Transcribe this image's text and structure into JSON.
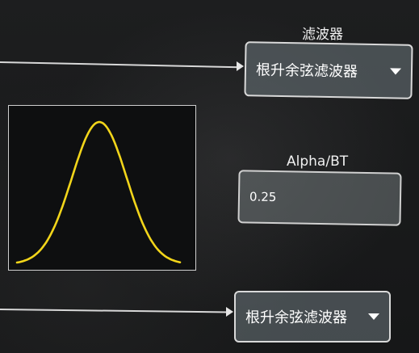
{
  "filter_label": "滤波器",
  "filter_select_top": {
    "value": "根升余弦滤波器",
    "icon": "caret-down-icon"
  },
  "alpha_label": "Alpha/BT",
  "alpha_input": {
    "value": "0.25"
  },
  "filter_select_bottom": {
    "value": "根升余弦滤波器",
    "icon": "caret-down-icon"
  },
  "response_plot": {
    "curve_color": "#f2d51a",
    "border_color": "#cfcfcf"
  }
}
